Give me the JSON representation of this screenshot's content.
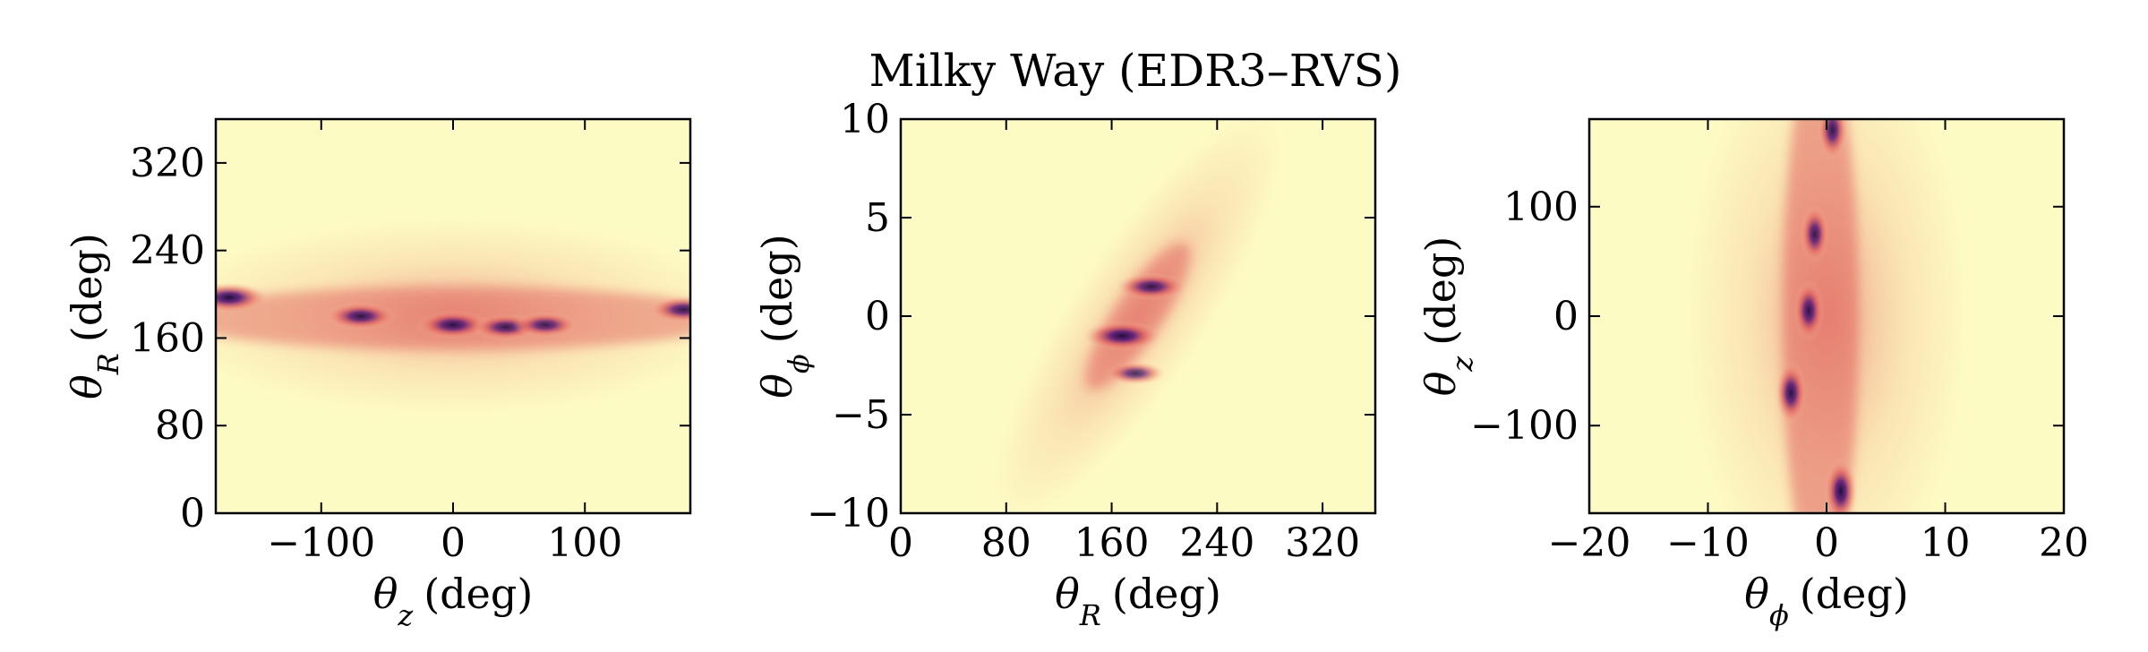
{
  "figure_title": "Milky Way (EDR3–RVS)",
  "colors": {
    "background": "#fdfbc4",
    "low": "#f7c8a0",
    "mid": "#e05a5a",
    "high": "#5b1a7a",
    "peak": "#1c0f3a"
  },
  "chart_data": [
    {
      "type": "heatmap",
      "x_label_symbol": "θ",
      "x_label_sub": "z",
      "x_label_unit": "(deg)",
      "y_label_symbol": "θ",
      "y_label_sub": "R",
      "y_label_unit": "(deg)",
      "xlim": [
        -180,
        180
      ],
      "ylim": [
        0,
        360
      ],
      "xticks": [
        -100,
        0,
        100
      ],
      "xtick_labels": [
        "−100",
        "0",
        "100"
      ],
      "yticks": [
        0,
        80,
        160,
        240,
        320
      ],
      "ytick_labels": [
        "0",
        "80",
        "160",
        "240",
        "320"
      ],
      "density_peaks": [
        {
          "x": -170,
          "y": 197,
          "weight": 1.0
        },
        {
          "x": -70,
          "y": 180,
          "weight": 0.85
        },
        {
          "x": 0,
          "y": 172,
          "weight": 0.9
        },
        {
          "x": 40,
          "y": 170,
          "weight": 0.75
        },
        {
          "x": 70,
          "y": 172,
          "weight": 0.7
        },
        {
          "x": 175,
          "y": 186,
          "weight": 0.8
        }
      ]
    },
    {
      "type": "heatmap",
      "x_label_symbol": "θ",
      "x_label_sub": "R",
      "x_label_unit": "(deg)",
      "y_label_symbol": "θ",
      "y_label_sub": "ϕ",
      "y_label_unit": "(deg)",
      "xlim": [
        0,
        360
      ],
      "ylim": [
        -10,
        10
      ],
      "xticks": [
        0,
        80,
        160,
        240,
        320
      ],
      "xtick_labels": [
        "0",
        "80",
        "160",
        "240",
        "320"
      ],
      "yticks": [
        -10,
        -5,
        0,
        5,
        10
      ],
      "ytick_labels": [
        "−10",
        "−5",
        "0",
        "5",
        "10"
      ],
      "density_peaks": [
        {
          "x": 168,
          "y": -1.0,
          "weight": 1.0
        },
        {
          "x": 190,
          "y": 1.5,
          "weight": 0.8
        },
        {
          "x": 178,
          "y": -2.9,
          "weight": 0.55
        }
      ]
    },
    {
      "type": "heatmap",
      "x_label_symbol": "θ",
      "x_label_sub": "ϕ",
      "x_label_unit": "(deg)",
      "y_label_symbol": "θ",
      "y_label_sub": "z",
      "y_label_unit": "(deg)",
      "xlim": [
        -20,
        20
      ],
      "ylim": [
        -180,
        180
      ],
      "xticks": [
        -20,
        -10,
        0,
        10,
        20
      ],
      "xtick_labels": [
        "−20",
        "−10",
        "0",
        "10",
        "20"
      ],
      "yticks": [
        -100,
        0,
        100
      ],
      "ytick_labels": [
        "−100",
        "0",
        "100"
      ],
      "density_peaks": [
        {
          "x": 0.5,
          "y": 170,
          "weight": 0.8
        },
        {
          "x": -1.0,
          "y": 75,
          "weight": 0.75
        },
        {
          "x": -1.5,
          "y": 5,
          "weight": 0.85
        },
        {
          "x": -3.0,
          "y": -70,
          "weight": 0.9
        },
        {
          "x": 1.2,
          "y": -160,
          "weight": 1.0
        }
      ]
    }
  ]
}
